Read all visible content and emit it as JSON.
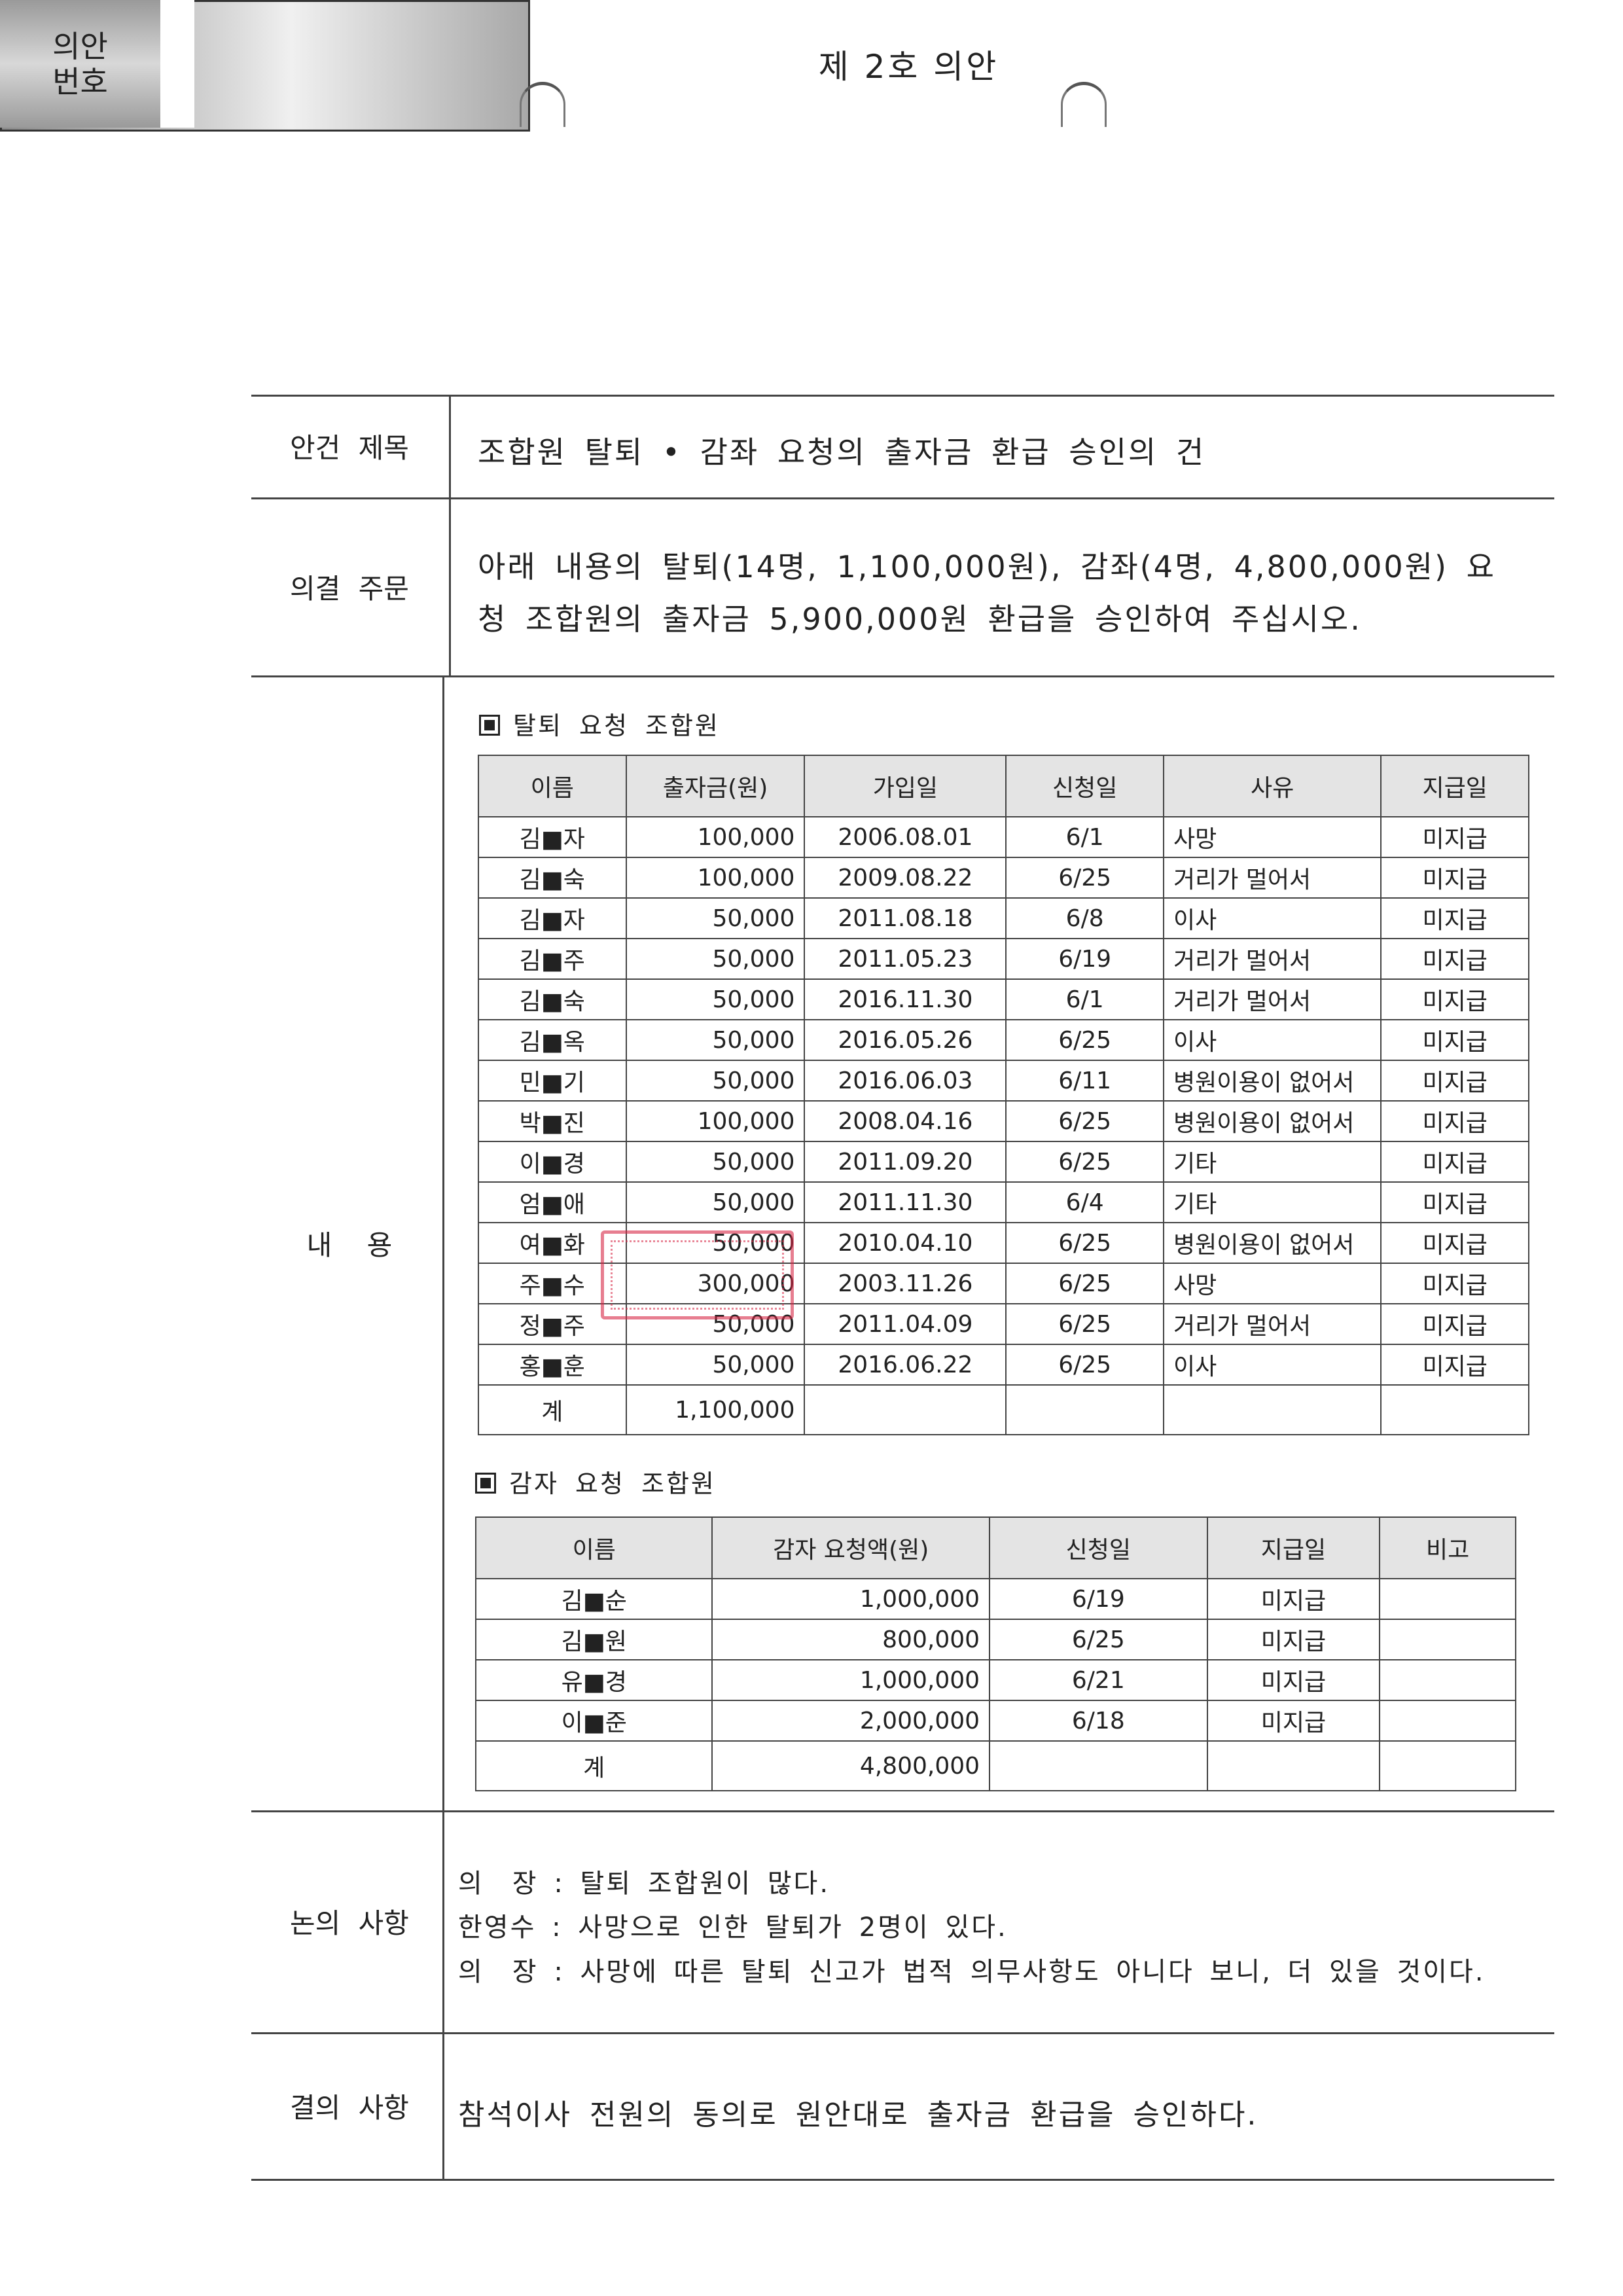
{
  "header": {
    "label": "의안\n번호",
    "value": "제 2호 의안"
  },
  "agenda_title": {
    "label": "안건 제목",
    "text": "조합원 탈퇴 • 감좌 요청의 출자금 환급 승인의 건"
  },
  "resolution": {
    "label": "의결 주문",
    "line1": "아래 내용의 탈퇴(14명, 1,100,000원), 감좌(4명, 4,800,000원) 요",
    "line2": "청 조합원의 출자금 5,900,000원 환급을 승인하여 주십시오."
  },
  "content": {
    "label": "내 용",
    "withdrawal": {
      "title": "탈퇴 요청 조합원",
      "headers": [
        "이름",
        "출자금(원)",
        "가입일",
        "신청일",
        "사유",
        "지급일"
      ],
      "rows": [
        [
          "김■자",
          "100,000",
          "2006.08.01",
          "6/1",
          "사망",
          "미지급"
        ],
        [
          "김■숙",
          "100,000",
          "2009.08.22",
          "6/25",
          "거리가 멀어서",
          "미지급"
        ],
        [
          "김■자",
          "50,000",
          "2011.08.18",
          "6/8",
          "이사",
          "미지급"
        ],
        [
          "김■주",
          "50,000",
          "2011.05.23",
          "6/19",
          "거리가 멀어서",
          "미지급"
        ],
        [
          "김■숙",
          "50,000",
          "2016.11.30",
          "6/1",
          "거리가 멀어서",
          "미지급"
        ],
        [
          "김■옥",
          "50,000",
          "2016.05.26",
          "6/25",
          "이사",
          "미지급"
        ],
        [
          "민■기",
          "50,000",
          "2016.06.03",
          "6/11",
          "병원이용이 없어서",
          "미지급"
        ],
        [
          "박■진",
          "100,000",
          "2008.04.16",
          "6/25",
          "병원이용이 없어서",
          "미지급"
        ],
        [
          "이■경",
          "50,000",
          "2011.09.20",
          "6/25",
          "기타",
          "미지급"
        ],
        [
          "엄■애",
          "50,000",
          "2011.11.30",
          "6/4",
          "기타",
          "미지급"
        ],
        [
          "여■화",
          "50,000",
          "2010.04.10",
          "6/25",
          "병원이용이 없어서",
          "미지급"
        ],
        [
          "주■수",
          "300,000",
          "2003.11.26",
          "6/25",
          "사망",
          "미지급"
        ],
        [
          "정■주",
          "50,000",
          "2011.04.09",
          "6/25",
          "거리가 멀어서",
          "미지급"
        ],
        [
          "홍■훈",
          "50,000",
          "2016.06.22",
          "6/25",
          "이사",
          "미지급"
        ]
      ],
      "total": [
        "계",
        "1,100,000",
        "",
        "",
        "",
        ""
      ]
    },
    "reduction": {
      "title": "감자 요청 조합원",
      "headers": [
        "이름",
        "감자 요청액(원)",
        "신청일",
        "지급일",
        "비고"
      ],
      "rows": [
        [
          "김■순",
          "1,000,000",
          "6/19",
          "미지급",
          ""
        ],
        [
          "김■원",
          "800,000",
          "6/25",
          "미지급",
          ""
        ],
        [
          "유■경",
          "1,000,000",
          "6/21",
          "미지급",
          ""
        ],
        [
          "이■준",
          "2,000,000",
          "6/18",
          "미지급",
          ""
        ]
      ],
      "total": [
        "계",
        "4,800,000",
        "",
        "",
        ""
      ]
    }
  },
  "discussion": {
    "label": "논의 사항",
    "lines": [
      "의　장 : 탈퇴 조합원이 많다.",
      "한영수 : 사망으로 인한 탈퇴가 2명이 있다.",
      "의　장 : 사망에 따른 탈퇴 신고가 법적 의무사항도 아니다 보니, 더 있을 것이다."
    ]
  },
  "decision": {
    "label": "결의 사항",
    "text": "참석이사 전원의 동의로 원안대로 출자금 환급을 승인하다."
  },
  "stamp_color": "#d7284a"
}
